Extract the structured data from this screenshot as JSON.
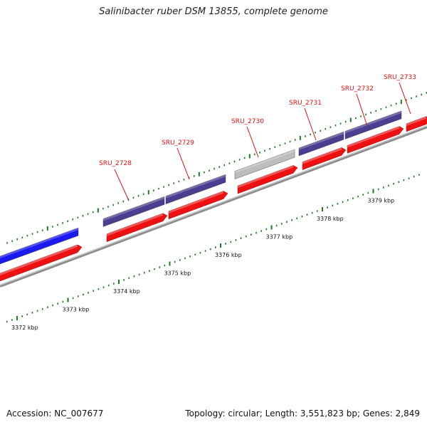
{
  "title": "Salinibacter ruber DSM 13855, complete genome",
  "footer": {
    "accession": "Accession: NC_007677",
    "topology": "Topology: circular; Length: 3,551,823 bp; Genes: 2,849"
  },
  "colors": {
    "background": "#ffffff",
    "backbone": "#8c8c8c",
    "tick": "#1e7a1e",
    "forward_cds": "#ee1111",
    "reverse_cds": "#4b3d8f",
    "reverse_cds_highlight": "#1a1aee",
    "pseudogene": "#bdbdbd",
    "label_red": "#e01010"
  },
  "ruler": {
    "unit": "kbp",
    "labels": [
      {
        "kbp": 3372,
        "text": "3372 kbp"
      },
      {
        "kbp": 3373,
        "text": "3373 kbp"
      },
      {
        "kbp": 3374,
        "text": "3374 kbp"
      },
      {
        "kbp": 3375,
        "text": "3375 kbp"
      },
      {
        "kbp": 3376,
        "text": "3376 kbp"
      },
      {
        "kbp": 3377,
        "text": "3377 kbp"
      },
      {
        "kbp": 3378,
        "text": "3378 kbp"
      },
      {
        "kbp": 3379,
        "text": "3379 kbp"
      }
    ]
  },
  "gene_labels": [
    {
      "id": "SRU_2728",
      "text": "SRU_2728"
    },
    {
      "id": "SRU_2729",
      "text": "SRU_2729"
    },
    {
      "id": "SRU_2730",
      "text": "SRU_2730"
    },
    {
      "id": "SRU_2731",
      "text": "SRU_2731"
    },
    {
      "id": "SRU_2732",
      "text": "SRU_2732"
    },
    {
      "id": "SRU_2733",
      "text": "SRU_2733"
    }
  ]
}
